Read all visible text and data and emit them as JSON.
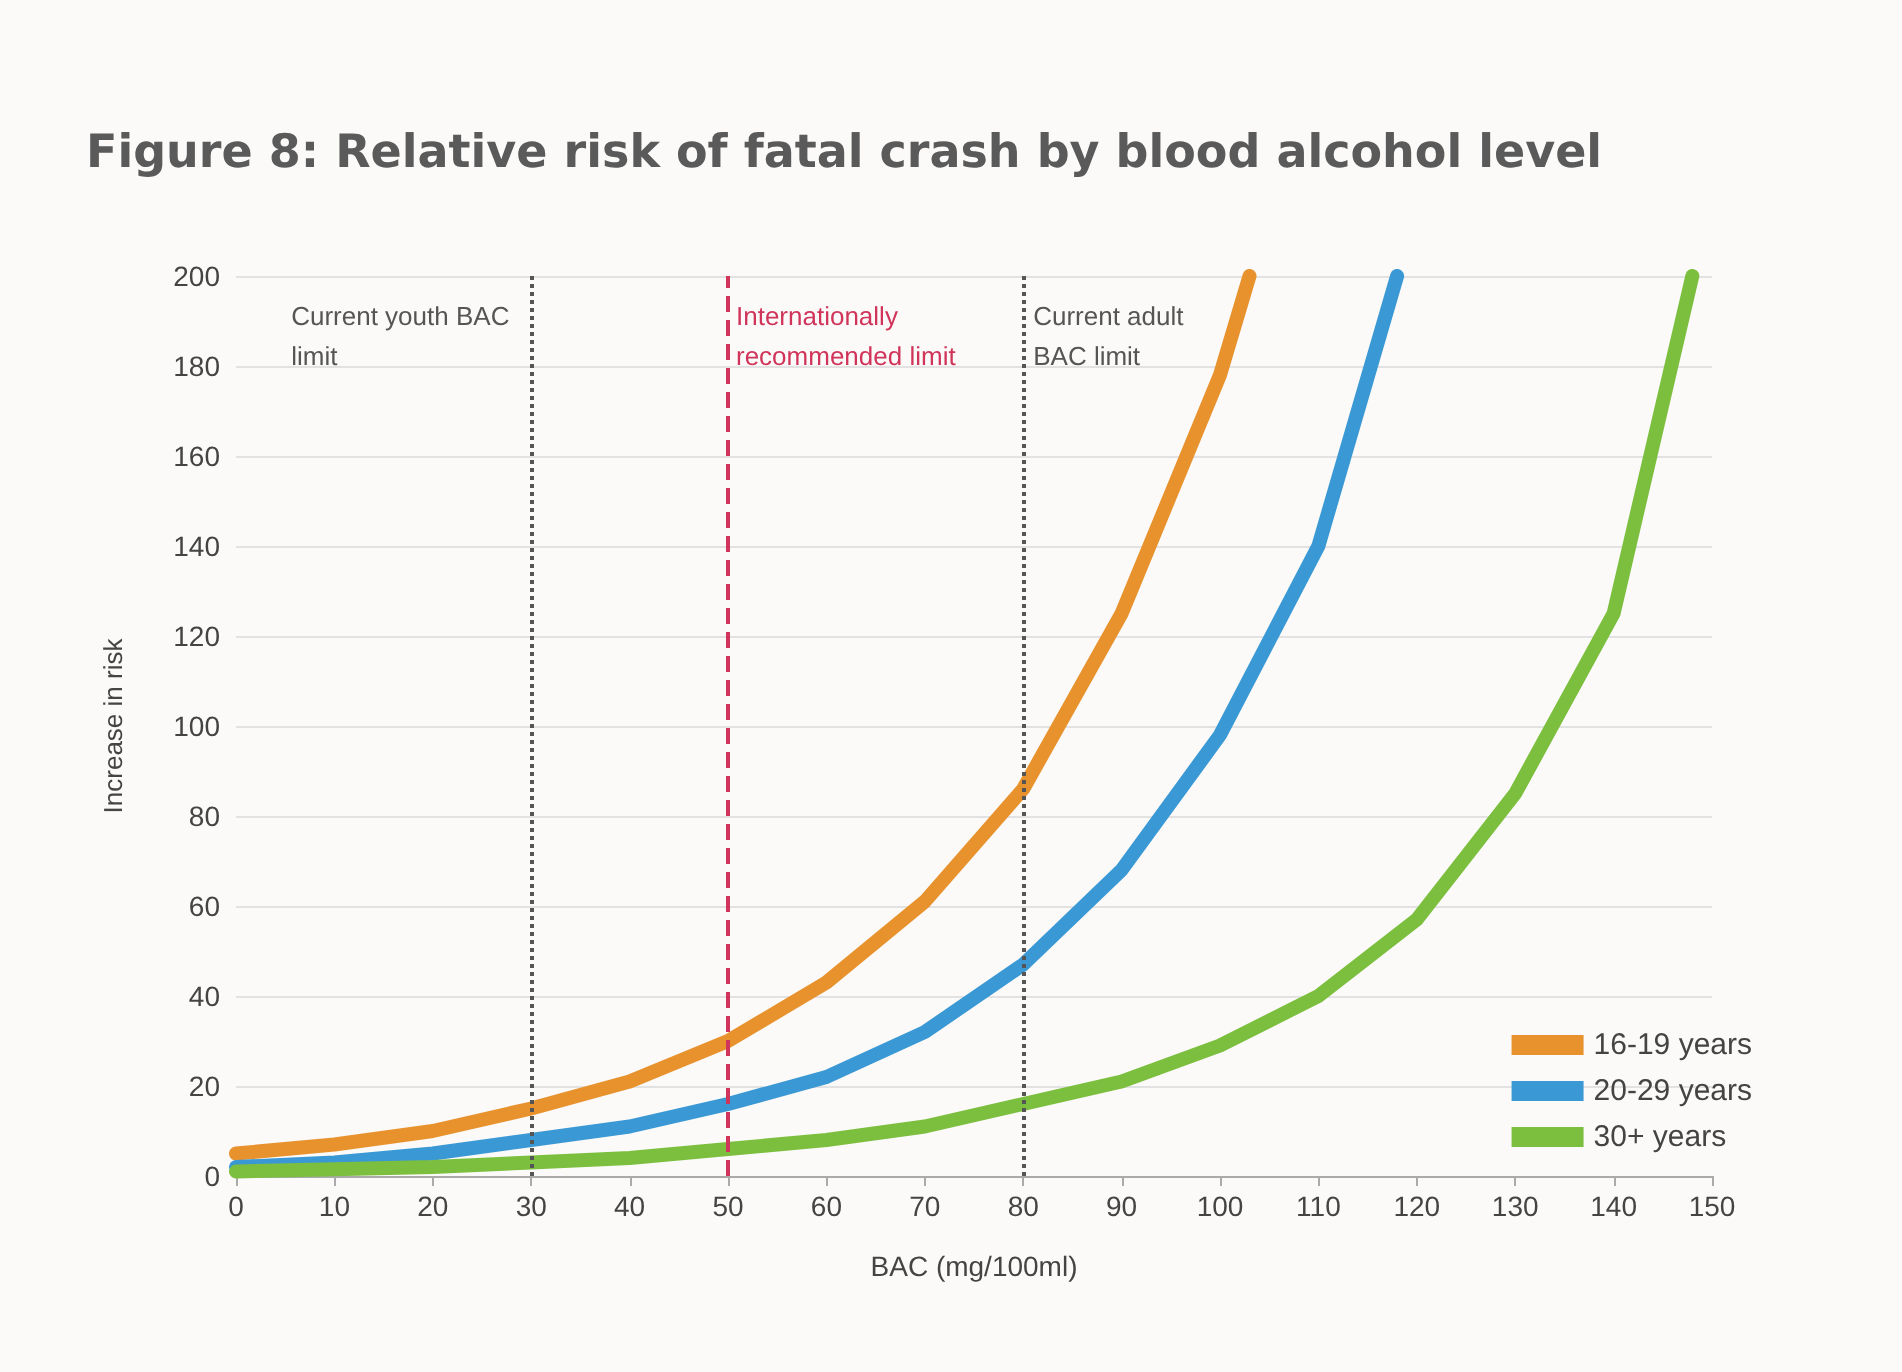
{
  "chart_data": {
    "type": "line",
    "title": "Figure 8: Relative risk of fatal crash by blood alcohol level",
    "xlabel": "BAC (mg/100ml)",
    "ylabel": "Increase in risk",
    "xlim": [
      0,
      150
    ],
    "xticks": [
      0,
      10,
      20,
      30,
      40,
      50,
      60,
      70,
      80,
      90,
      100,
      110,
      120,
      130,
      140,
      150
    ],
    "ylim": [
      0,
      200
    ],
    "yticks": [
      0,
      20,
      40,
      60,
      80,
      100,
      120,
      140,
      160,
      180,
      200
    ],
    "grid": "y",
    "legend": "bottom right",
    "marker": "none",
    "line_style": "solid",
    "series": [
      {
        "name": "16-19 years",
        "color": "#e8922e",
        "x": [
          0,
          10,
          20,
          30,
          40,
          50,
          60,
          70,
          80,
          90,
          100,
          103
        ],
        "values": [
          5,
          7,
          10,
          15,
          21,
          30,
          43,
          61,
          86,
          125,
          178,
          200
        ]
      },
      {
        "name": "20-29 years",
        "color": "#3a98d4",
        "x": [
          0,
          10,
          20,
          30,
          40,
          50,
          60,
          70,
          80,
          90,
          100,
          110,
          118
        ],
        "values": [
          2,
          3,
          5,
          8,
          11,
          16,
          22,
          32,
          47,
          68,
          98,
          140,
          200
        ]
      },
      {
        "name": "30+ years",
        "color": "#7cbf3f",
        "x": [
          0,
          10,
          20,
          30,
          40,
          50,
          60,
          70,
          80,
          90,
          100,
          110,
          120,
          130,
          140,
          148
        ],
        "values": [
          1,
          1.5,
          2,
          3,
          4,
          6,
          8,
          11,
          16,
          21,
          29,
          40,
          57,
          85,
          125,
          200
        ]
      }
    ],
    "ref_lines": [
      {
        "axis": "x",
        "value": 30,
        "label": "Current youth BAC limit",
        "color": "#555555",
        "line_style": "dotted"
      },
      {
        "axis": "x",
        "value": 50,
        "label": "Internationally recommended limit",
        "color": "#d0345a",
        "line_style": "dashed"
      },
      {
        "axis": "x",
        "value": 80,
        "label": "Current adult BAC limit",
        "color": "#555555",
        "line_style": "dotted"
      }
    ]
  }
}
